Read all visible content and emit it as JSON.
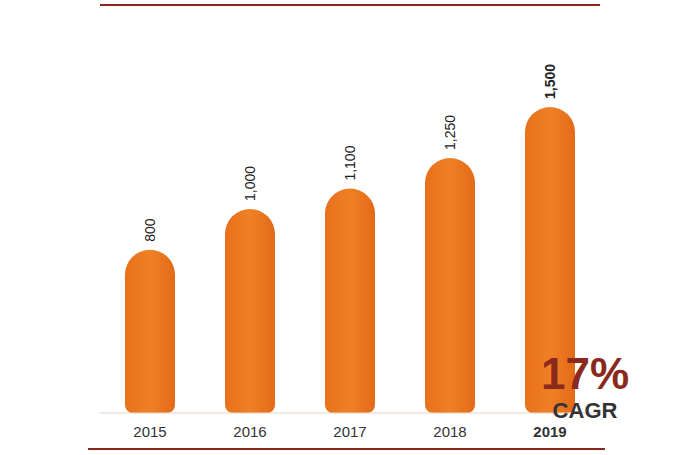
{
  "chart_data": {
    "type": "bar",
    "categories": [
      "2015",
      "2016",
      "2017",
      "2018",
      "2019"
    ],
    "values": [
      800,
      1000,
      1100,
      1250,
      1500
    ],
    "value_labels": [
      "800",
      "1,000",
      "1,100",
      "1,250",
      "1,500"
    ],
    "data_labels": true,
    "tick_labels": "x",
    "color": "#ef8025",
    "ylim": [
      0,
      2000
    ],
    "annotations": [
      "17%",
      "CAGR"
    ]
  }
}
